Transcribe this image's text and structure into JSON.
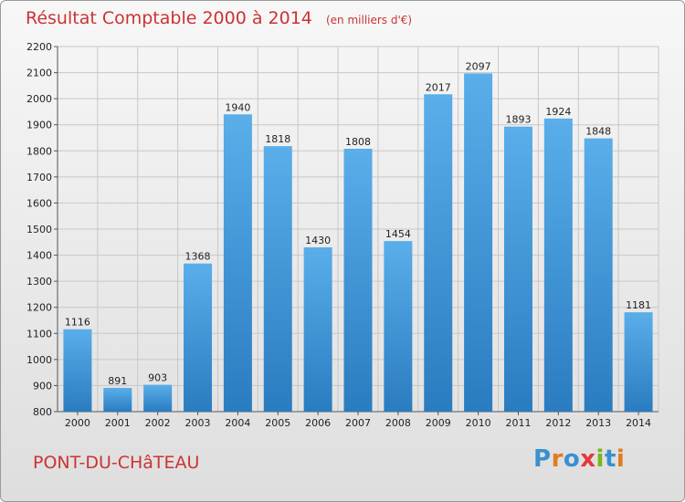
{
  "header": {
    "title": "Résultat Comptable 2000 à 2014",
    "subtitle": "(en milliers d'€)"
  },
  "footer": {
    "place": "PONT-DU-CHâTEAU",
    "logo": "Proxiti"
  },
  "colors": {
    "title": "#cc3333",
    "bar_light": "#5aaeea",
    "bar_dark": "#2a7cc0",
    "grid": "#c8c8c8",
    "logo_letters": [
      "#3a8fd0",
      "#e07b1f",
      "#3a8fd0",
      "#e23a3a",
      "#7ab51d",
      "#3a8fd0",
      "#e07b1f"
    ]
  },
  "chart_data": {
    "type": "bar",
    "title": "Résultat Comptable 2000 à 2014",
    "subtitle": "(en milliers d'€)",
    "xlabel": "",
    "ylabel": "",
    "categories": [
      "2000",
      "2001",
      "2002",
      "2003",
      "2004",
      "2005",
      "2006",
      "2007",
      "2008",
      "2009",
      "2010",
      "2011",
      "2012",
      "2013",
      "2014"
    ],
    "values": [
      1116,
      891,
      903,
      1368,
      1940,
      1818,
      1430,
      1808,
      1454,
      2017,
      2097,
      1893,
      1924,
      1848,
      1181
    ],
    "ylim": [
      800,
      2200
    ],
    "yticks": [
      800,
      900,
      1000,
      1100,
      1200,
      1300,
      1400,
      1500,
      1600,
      1700,
      1800,
      1900,
      2000,
      2100,
      2200
    ],
    "grid": true,
    "legend": "none"
  }
}
